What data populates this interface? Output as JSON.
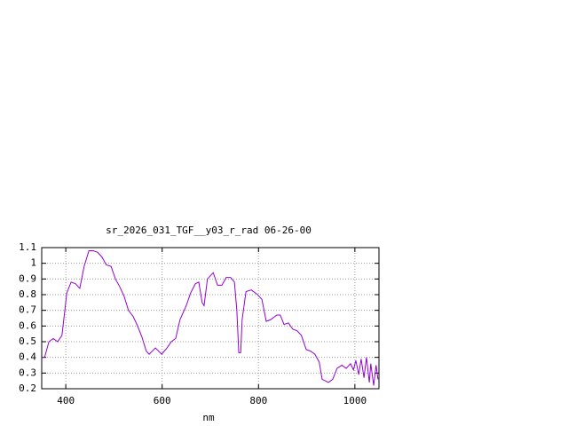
{
  "chart_data": {
    "type": "line",
    "title": "sr_2026_031_TGF__y03_r_rad 06-26-00",
    "xlabel": "nm",
    "xlim": [
      350,
      1050
    ],
    "xticks": [
      400,
      600,
      800,
      1000
    ],
    "ylim": [
      0.2,
      1.1
    ],
    "yticks": [
      0.2,
      0.3,
      0.4,
      0.5,
      0.6,
      0.7,
      0.8,
      0.9,
      1,
      1.1
    ],
    "grid": true,
    "x": [
      350,
      356,
      365,
      374,
      383,
      392,
      398,
      402,
      411,
      420,
      429,
      438,
      448,
      457,
      466,
      475,
      484,
      494,
      503,
      512,
      521,
      530,
      540,
      549,
      558,
      567,
      573,
      586,
      599,
      610,
      619,
      628,
      637,
      650,
      659,
      669,
      676,
      683,
      687,
      694,
      706,
      715,
      724,
      733,
      742,
      750,
      755,
      759,
      763,
      766,
      774,
      785,
      798,
      807,
      816,
      825,
      838,
      845,
      853,
      862,
      871,
      880,
      889,
      899,
      908,
      917,
      926,
      932,
      939,
      945,
      954,
      963,
      973,
      982,
      991,
      997,
      1002,
      1008,
      1013,
      1019,
      1024,
      1030,
      1033,
      1039,
      1044,
      1048
    ],
    "series": [
      {
        "color": "#9400d3",
        "values": [
          0.4,
          0.4,
          0.5,
          0.52,
          0.5,
          0.54,
          0.7,
          0.81,
          0.88,
          0.87,
          0.84,
          0.98,
          1.08,
          1.08,
          1.07,
          1.04,
          0.99,
          0.98,
          0.9,
          0.85,
          0.79,
          0.7,
          0.66,
          0.6,
          0.53,
          0.44,
          0.42,
          0.46,
          0.42,
          0.46,
          0.5,
          0.52,
          0.64,
          0.73,
          0.81,
          0.87,
          0.88,
          0.75,
          0.73,
          0.9,
          0.94,
          0.86,
          0.86,
          0.91,
          0.91,
          0.88,
          0.7,
          0.43,
          0.43,
          0.64,
          0.82,
          0.83,
          0.8,
          0.77,
          0.63,
          0.64,
          0.67,
          0.67,
          0.61,
          0.62,
          0.58,
          0.57,
          0.54,
          0.45,
          0.44,
          0.42,
          0.37,
          0.26,
          0.25,
          0.24,
          0.26,
          0.33,
          0.35,
          0.33,
          0.36,
          0.32,
          0.38,
          0.29,
          0.39,
          0.27,
          0.4,
          0.24,
          0.36,
          0.22,
          0.35,
          0.26
        ]
      }
    ]
  }
}
